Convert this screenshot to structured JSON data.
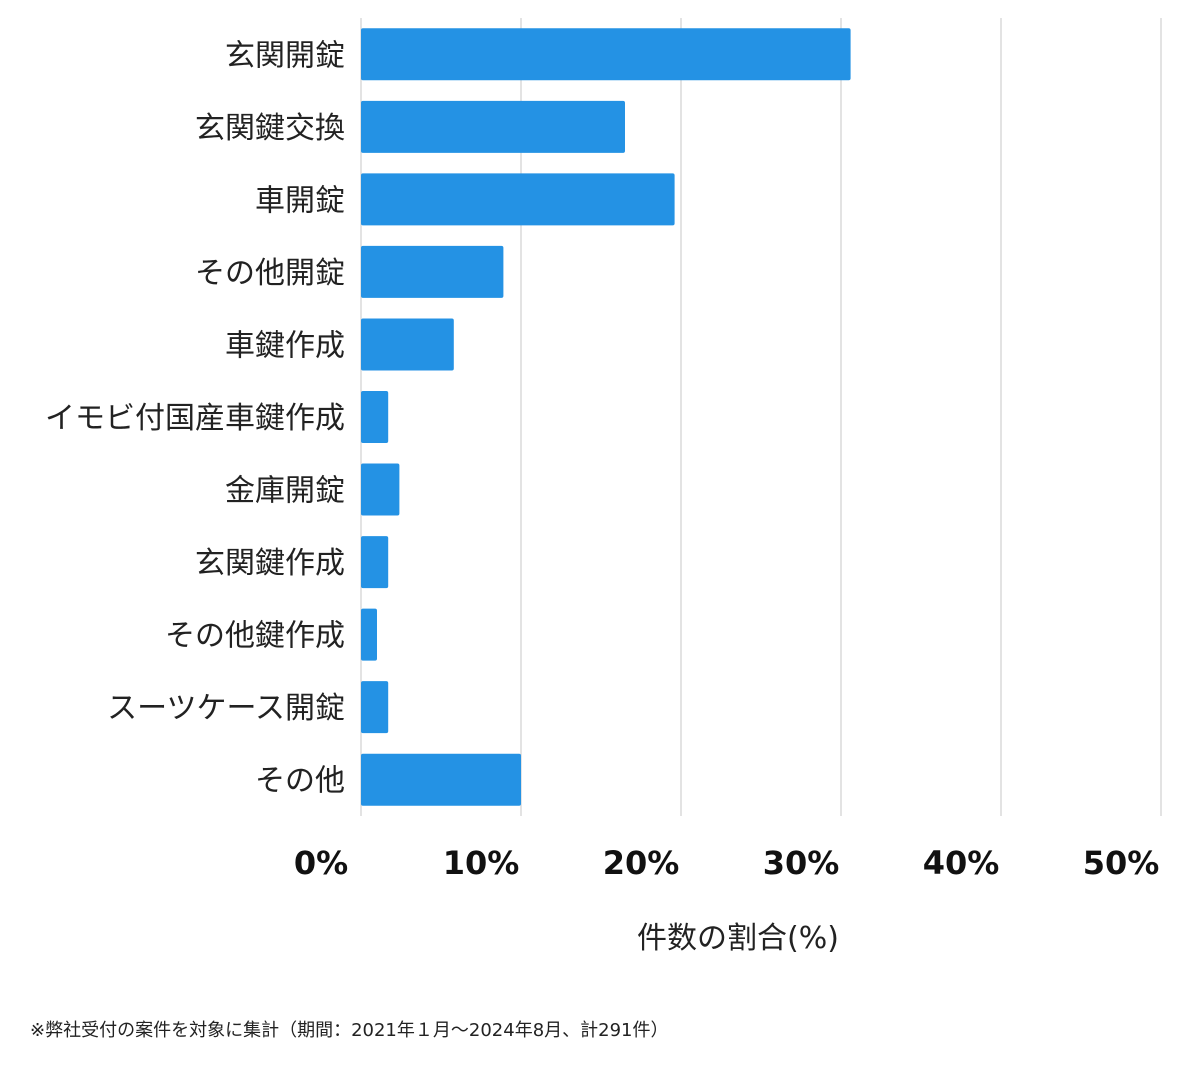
{
  "chart_data": {
    "type": "bar",
    "orientation": "horizontal",
    "categories": [
      "玄関開錠",
      "玄関鍵交換",
      "車開錠",
      "その他開錠",
      "車鍵作成",
      "イモビ付国産車鍵作成",
      "金庫開錠",
      "玄関鍵作成",
      "その他鍵作成",
      "スーツケース開錠",
      "その他"
    ],
    "values": [
      30.6,
      16.5,
      19.6,
      8.9,
      5.8,
      1.7,
      2.4,
      1.7,
      1.0,
      1.7,
      10.0
    ],
    "xlabel": "件数の割合(%)",
    "ylabel": "",
    "xlim": [
      0,
      50
    ],
    "xticks": [
      "0%",
      "10%",
      "20%",
      "30%",
      "40%",
      "50%"
    ],
    "grid": true,
    "bar_color": "#2492e4",
    "grid_color": "#d0d0d0"
  },
  "note": "※弊社受付の案件を対象に集計（期間：2021年１月～2024年8月、計291件）"
}
